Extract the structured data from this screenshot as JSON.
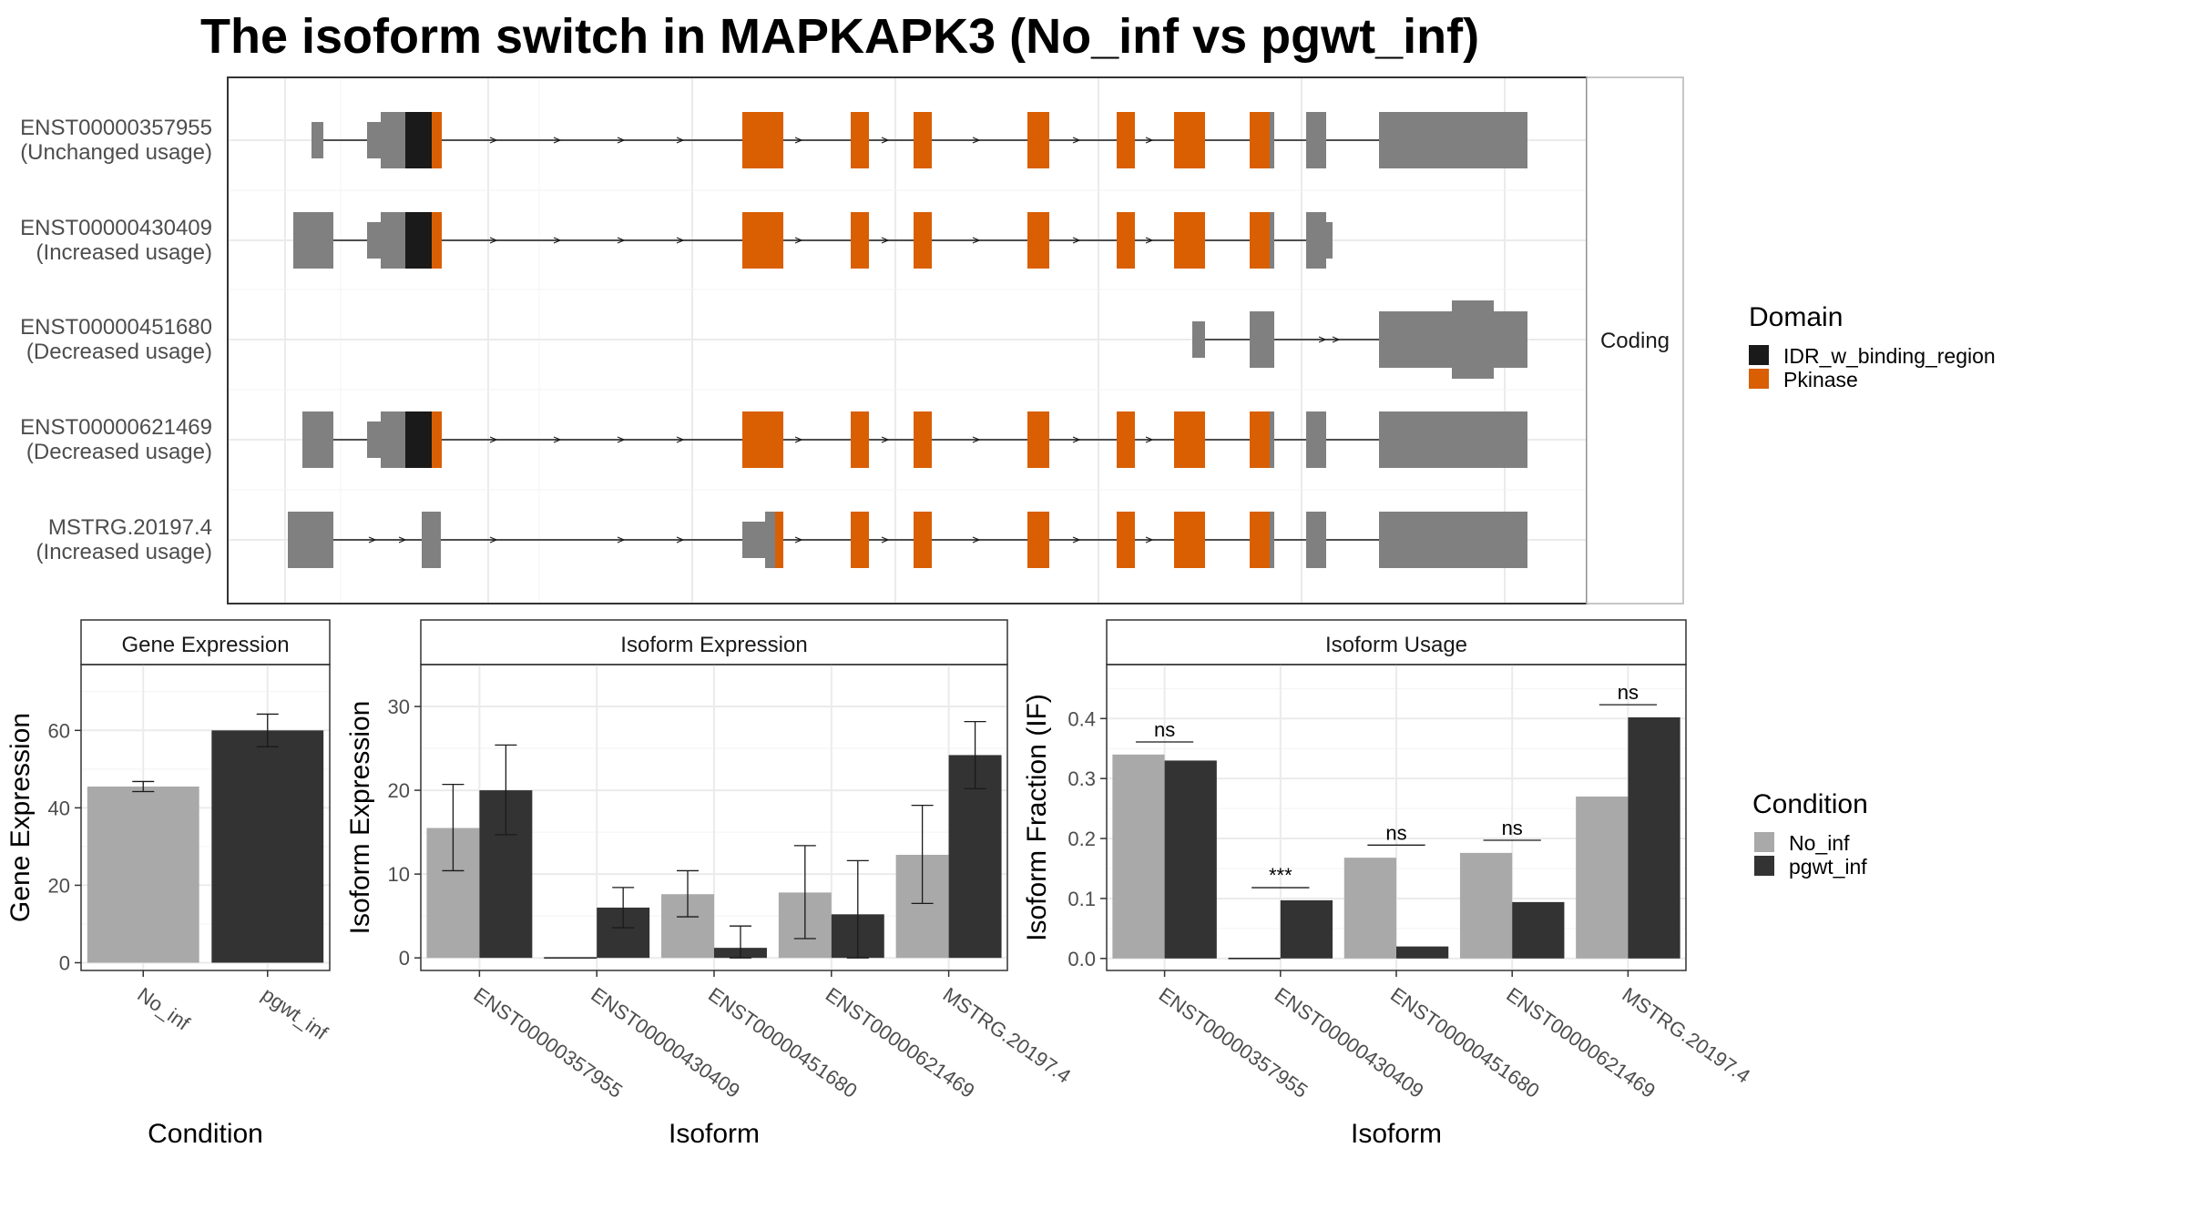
{
  "title": "The isoform switch in MAPKAPK3 (No_inf vs pgwt_inf)",
  "colors": {
    "IDR_w_binding_region": "#1a1a1a",
    "Pkinase": "#d95f02",
    "noncoding": "#808080",
    "No_inf": "#a9a9a9",
    "pgwt_inf": "#333333"
  },
  "structure": {
    "facet_label": "Coding",
    "domain_legend": {
      "title": "Domain",
      "items": [
        "IDR_w_binding_region",
        "Pkinase"
      ]
    },
    "isoforms": [
      {
        "id": "ENST00000357955",
        "usage": "(Unchanged usage)"
      },
      {
        "id": "ENST00000430409",
        "usage": "(Increased usage)"
      },
      {
        "id": "ENST00000451680",
        "usage": "(Decreased usage)"
      },
      {
        "id": "ENST00000621469",
        "usage": "(Decreased usage)"
      },
      {
        "id": "MSTRG.20197.4",
        "usage": "(Increased usage)"
      }
    ]
  },
  "condition_legend": {
    "title": "Condition",
    "items": [
      "No_inf",
      "pgwt_inf"
    ]
  },
  "chart_data": [
    {
      "type": "bar",
      "title": "Gene Expression",
      "xlabel": "Condition",
      "ylabel": "Gene Expression",
      "categories": [
        "No_inf",
        "pgwt_inf"
      ],
      "values": [
        45.5,
        60
      ],
      "error_low": [
        44.2,
        55.8
      ],
      "error_high": [
        46.8,
        64.2
      ],
      "ylim": [
        -2,
        77
      ],
      "yticks": [
        0,
        20,
        40,
        60
      ],
      "grid": true
    },
    {
      "type": "bar",
      "title": "Isoform Expression",
      "xlabel": "Isoform",
      "ylabel": "Isoform Expression",
      "categories": [
        "ENST00000357955",
        "ENST00000430409",
        "ENST00000451680",
        "ENST00000621469",
        "MSTRG.20197.4"
      ],
      "series": [
        {
          "name": "No_inf",
          "values": [
            15.5,
            0,
            7.6,
            7.8,
            12.3
          ],
          "error_low": [
            10.4,
            0,
            4.9,
            2.3,
            6.5
          ],
          "error_high": [
            20.7,
            0,
            10.4,
            13.4,
            18.2
          ]
        },
        {
          "name": "pgwt_inf",
          "values": [
            20,
            6,
            1.2,
            5.2,
            24.2
          ],
          "error_low": [
            14.7,
            3.6,
            0,
            0,
            20.2
          ],
          "error_high": [
            25.4,
            8.4,
            3.8,
            11.6,
            28.2
          ]
        }
      ],
      "ylim": [
        -1.5,
        35
      ],
      "yticks": [
        0,
        10,
        20,
        30
      ],
      "grid": true
    },
    {
      "type": "bar",
      "title": "Isoform Usage",
      "xlabel": "Isoform",
      "ylabel": "Isoform Fraction (IF)",
      "categories": [
        "ENST00000357955",
        "ENST00000430409",
        "ENST00000451680",
        "ENST00000621469",
        "MSTRG.20197.4"
      ],
      "series": [
        {
          "name": "No_inf",
          "values": [
            0.34,
            0,
            0.168,
            0.176,
            0.27
          ]
        },
        {
          "name": "pgwt_inf",
          "values": [
            0.33,
            0.097,
            0.02,
            0.094,
            0.402
          ]
        }
      ],
      "significance": [
        "ns",
        "***",
        "ns",
        "ns",
        "ns"
      ],
      "sig_level": [
        0.361,
        0.118,
        0.189,
        0.197,
        0.423
      ],
      "ylim": [
        -0.02,
        0.49
      ],
      "yticks": [
        0.0,
        0.1,
        0.2,
        0.3,
        0.4
      ],
      "yticklabels": [
        "0.0",
        "0.1",
        "0.2",
        "0.3",
        "0.4"
      ],
      "grid": true
    }
  ]
}
